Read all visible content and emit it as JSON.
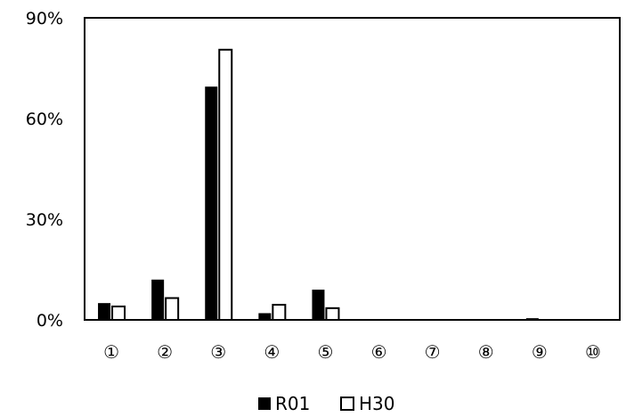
{
  "chart_data": {
    "type": "bar",
    "categories": [
      "①",
      "②",
      "③",
      "④",
      "⑤",
      "⑥",
      "⑦",
      "⑧",
      "⑨",
      "⑩"
    ],
    "series": [
      {
        "name": "R01",
        "values": [
          5.0,
          12.0,
          69.5,
          2.0,
          9.0,
          0,
          0,
          0,
          0.5,
          0
        ],
        "color": "#000000"
      },
      {
        "name": "H30",
        "values": [
          4.0,
          6.5,
          80.5,
          4.5,
          3.5,
          0,
          0,
          0,
          0,
          0
        ],
        "color": "#ffffff",
        "stroke": "#000000"
      }
    ],
    "ylim": [
      0,
      90
    ],
    "yticks": [
      0,
      30,
      60,
      90
    ],
    "ytick_labels": [
      "0%",
      "30%",
      "60%",
      "90%"
    ],
    "grid": false,
    "legend_position": "bottom-center",
    "title": "",
    "xlabel": "",
    "ylabel": ""
  }
}
